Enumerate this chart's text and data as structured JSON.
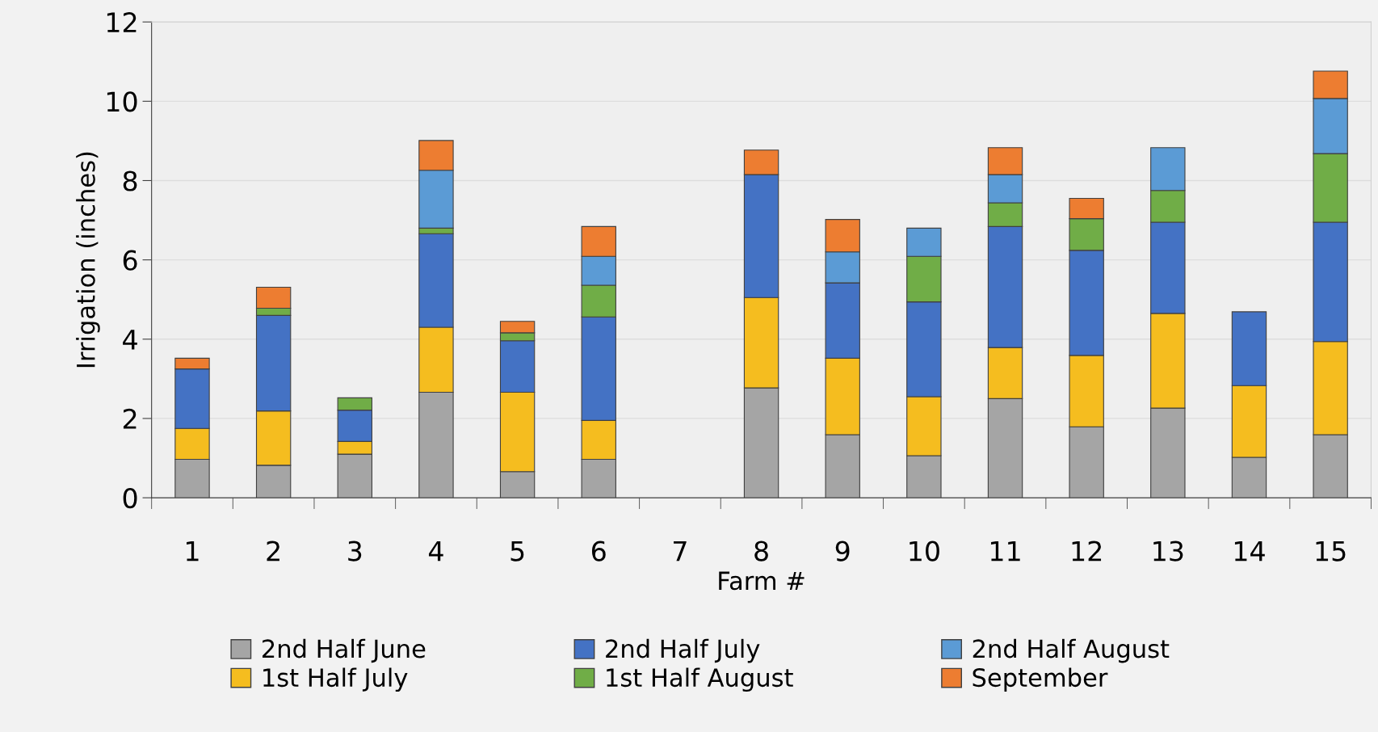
{
  "chart_data": {
    "type": "bar",
    "stacked": true,
    "xlabel": "Farm #",
    "ylabel": "Irrigation (inches)",
    "categories": [
      "1",
      "2",
      "3",
      "4",
      "5",
      "6",
      "7",
      "8",
      "9",
      "10",
      "11",
      "12",
      "13",
      "14",
      "15"
    ],
    "series": [
      {
        "name": "2nd Half June",
        "color": "#a5a5a5",
        "values": [
          0.97,
          0.82,
          1.1,
          2.66,
          0.66,
          0.97,
          null,
          2.77,
          1.59,
          1.06,
          2.5,
          1.79,
          2.26,
          1.02,
          1.59
        ]
      },
      {
        "name": "1st Half July",
        "color": "#f5bd1f",
        "values": [
          0.78,
          1.37,
          0.32,
          1.64,
          2.0,
          0.98,
          null,
          2.28,
          1.93,
          1.49,
          1.29,
          1.8,
          2.39,
          1.81,
          2.35
        ]
      },
      {
        "name": "2nd Half July",
        "color": "#4472c4",
        "values": [
          1.5,
          2.41,
          0.79,
          2.36,
          1.3,
          2.61,
          null,
          3.1,
          1.9,
          2.39,
          3.05,
          2.65,
          2.3,
          1.86,
          3.01
        ]
      },
      {
        "name": "1st Half August",
        "color": "#70ad47",
        "values": [
          null,
          0.18,
          0.31,
          0.14,
          0.2,
          0.8,
          null,
          null,
          null,
          1.15,
          0.6,
          0.8,
          0.8,
          null,
          1.73
        ]
      },
      {
        "name": "2nd Half August",
        "color": "#5b9bd5",
        "values": [
          null,
          null,
          null,
          1.46,
          null,
          0.73,
          null,
          null,
          0.78,
          0.71,
          0.71,
          null,
          1.08,
          null,
          1.39
        ]
      },
      {
        "name": "September",
        "color": "#ed7d31",
        "values": [
          0.27,
          0.53,
          null,
          0.75,
          0.29,
          0.75,
          null,
          0.62,
          0.82,
          null,
          0.68,
          0.51,
          null,
          null,
          0.69
        ]
      }
    ],
    "ylim": [
      0,
      12
    ],
    "yticks": [
      0,
      2,
      4,
      6,
      8,
      10,
      12
    ],
    "grid": "y",
    "legend": "bottom"
  }
}
